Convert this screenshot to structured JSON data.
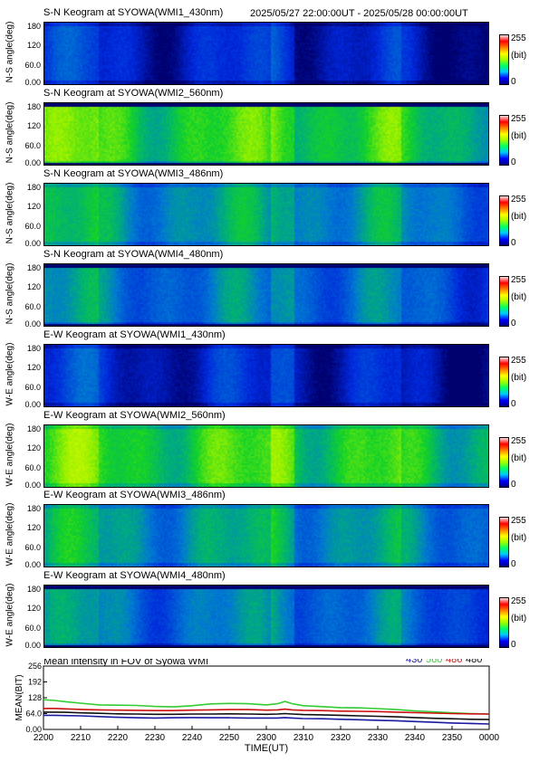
{
  "date_range": "2025/05/27 22:00:00UT - 2025/05/28 00:00:00UT",
  "colorbar": {
    "max": "255",
    "unit": "(bit)",
    "min": "0"
  },
  "y_ticks": [
    "180",
    "120",
    "60.0",
    "0.00"
  ],
  "panels": [
    {
      "title": "S-N Keogram at SYOWA(WMI1_430nm)",
      "ylabel": "N-S angle(deg)",
      "level": 0.1,
      "edge_dark": false
    },
    {
      "title": "S-N Keogram at SYOWA(WMI2_560nm)",
      "ylabel": "N-S angle(deg)",
      "level": 0.42,
      "edge_dark": true
    },
    {
      "title": "S-N Keogram at SYOWA(WMI3_486nm)",
      "ylabel": "N-S angle(deg)",
      "level": 0.3,
      "edge_dark": false
    },
    {
      "title": "S-N Keogram at SYOWA(WMI4_480nm)",
      "ylabel": "N-S angle(deg)",
      "level": 0.24,
      "edge_dark": true
    },
    {
      "title": "E-W Keogram at SYOWA(WMI1_430nm)",
      "ylabel": "W-E angle(deg)",
      "level": 0.1,
      "edge_dark": false
    },
    {
      "title": "E-W Keogram at SYOWA(WMI2_560nm)",
      "ylabel": "W-E angle(deg)",
      "level": 0.42,
      "edge_dark": false
    },
    {
      "title": "E-W Keogram at SYOWA(WMI3_486nm)",
      "ylabel": "W-E angle(deg)",
      "level": 0.3,
      "edge_dark": false
    },
    {
      "title": "E-W Keogram at SYOWA(WMI4_480nm)",
      "ylabel": "W-E angle(deg)",
      "level": 0.24,
      "edge_dark": true
    }
  ],
  "chart_data": {
    "type": "line",
    "title": "Mean intensity in FOV of Syowa WMI",
    "xlabel": "TIME(UT)",
    "ylabel": "MEAN(BIT)",
    "x_ticks": [
      "2200",
      "2210",
      "2220",
      "2230",
      "2240",
      "2250",
      "2300",
      "2310",
      "2320",
      "2330",
      "2340",
      "2350",
      "0000"
    ],
    "y_ticks": [
      "256",
      "192",
      "128",
      "64.0",
      "0.00"
    ],
    "xlim": [
      0,
      120
    ],
    "ylim": [
      0,
      256
    ],
    "x": [
      0,
      3,
      6,
      10,
      15,
      20,
      25,
      30,
      35,
      40,
      45,
      50,
      55,
      60,
      63,
      65,
      67,
      70,
      75,
      80,
      85,
      90,
      95,
      100,
      105,
      110,
      115,
      120
    ],
    "series": [
      {
        "name": "430",
        "color": "#1a1aa0",
        "values": [
          57,
          57,
          56,
          55,
          52,
          49,
          47,
          46,
          47,
          48,
          47,
          47,
          46,
          46,
          46,
          48,
          46,
          44,
          43,
          41,
          39,
          37,
          35,
          32,
          29,
          26,
          24,
          22
        ]
      },
      {
        "name": "560",
        "color": "#33cc33",
        "values": [
          120,
          117,
          112,
          106,
          99,
          98,
          97,
          93,
          91,
          96,
          103,
          105,
          104,
          99,
          104,
          113,
          104,
          96,
          92,
          88,
          87,
          84,
          80,
          75,
          71,
          67,
          64,
          62
        ]
      },
      {
        "name": "486",
        "color": "#cc1111",
        "values": [
          85,
          85,
          83,
          81,
          79,
          78,
          77,
          76,
          76,
          78,
          79,
          80,
          80,
          78,
          79,
          82,
          79,
          77,
          76,
          74,
          73,
          72,
          70,
          68,
          66,
          64,
          63,
          62
        ]
      },
      {
        "name": "480",
        "color": "#111111",
        "values": [
          70,
          70,
          69,
          67,
          65,
          63,
          62,
          61,
          61,
          62,
          62,
          63,
          62,
          61,
          62,
          64,
          62,
          60,
          59,
          57,
          55,
          53,
          51,
          48,
          45,
          43,
          41,
          40
        ]
      }
    ]
  }
}
